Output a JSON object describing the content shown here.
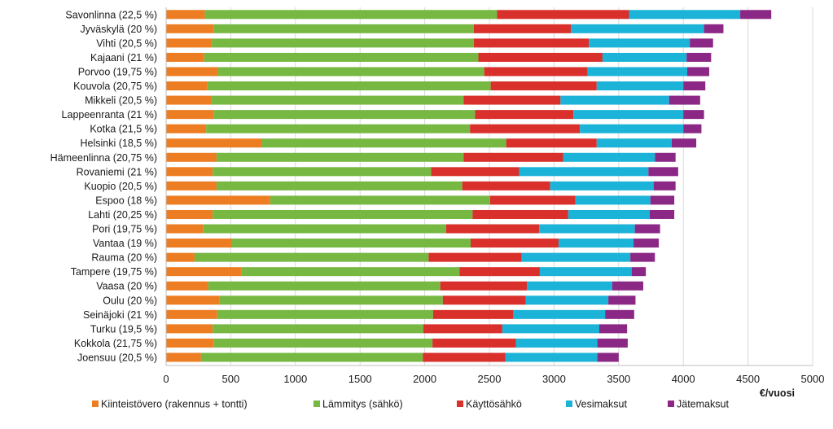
{
  "chart_data": {
    "type": "bar",
    "orientation": "horizontal",
    "stacked": true,
    "categories": [
      "Savonlinna (22,5 %)",
      "Jyväskylä (20 %)",
      "Vihti (20,5 %)",
      "Kajaani (21 %)",
      "Porvoo (19,75 %)",
      "Kouvola (20,75 %)",
      "Mikkeli (20,5 %)",
      "Lappeenranta (21 %)",
      "Kotka (21,5 %)",
      "Helsinki (18,5 %)",
      "Hämeenlinna (20,75 %)",
      "Rovaniemi (21 %)",
      "Kuopio (20,5 %)",
      "Espoo (18 %)",
      "Lahti (20,25 %)",
      "Pori (19,75 %)",
      "Vantaa (19 %)",
      "Rauma (20 %)",
      "Tampere (19,75 %)",
      "Vaasa (20 %)",
      "Oulu (20 %)",
      "Seinäjoki (21 %)",
      "Turku (19,5 %)",
      "Kokkola (21,75 %)",
      "Joensuu (20,5 %)"
    ],
    "series": [
      {
        "name": "Kiinteistövero (rakennus + tontti)",
        "color": "#ED7D22",
        "values": [
          300,
          370,
          350,
          295,
          400,
          320,
          350,
          370,
          310,
          740,
          390,
          360,
          390,
          805,
          360,
          285,
          510,
          220,
          580,
          325,
          410,
          395,
          360,
          370,
          270
        ]
      },
      {
        "name": "Lämmitys (sähkö)",
        "color": "#77B843",
        "values": [
          2260,
          2010,
          2030,
          2120,
          2060,
          2190,
          1950,
          2020,
          2040,
          1890,
          1910,
          1690,
          1900,
          1700,
          2010,
          1880,
          1845,
          1810,
          1690,
          1795,
          1730,
          1670,
          1630,
          1690,
          1715
        ]
      },
      {
        "name": "Käyttösähkö",
        "color": "#D9302C",
        "values": [
          1020,
          750,
          890,
          960,
          800,
          820,
          750,
          760,
          850,
          700,
          770,
          680,
          680,
          660,
          740,
          720,
          680,
          720,
          620,
          670,
          640,
          620,
          610,
          645,
          640
        ]
      },
      {
        "name": "Vesimaksut",
        "color": "#1BB3D7",
        "values": [
          860,
          1030,
          780,
          650,
          770,
          670,
          840,
          850,
          800,
          580,
          710,
          1000,
          800,
          580,
          630,
          740,
          580,
          840,
          710,
          660,
          640,
          710,
          750,
          630,
          710
        ]
      },
      {
        "name": "Jätemaksut",
        "color": "#8B2886",
        "values": [
          240,
          150,
          180,
          190,
          170,
          170,
          240,
          160,
          140,
          190,
          160,
          230,
          170,
          185,
          190,
          195,
          195,
          190,
          110,
          240,
          210,
          225,
          215,
          235,
          165
        ]
      }
    ],
    "x_axis": {
      "min": 0,
      "max": 5000,
      "ticks": [
        0,
        500,
        1000,
        1500,
        2000,
        2500,
        3000,
        3500,
        4000,
        4500,
        5000
      ],
      "unit_label": "€/vuosi"
    },
    "grid": "vertical",
    "legend_position": "bottom"
  }
}
